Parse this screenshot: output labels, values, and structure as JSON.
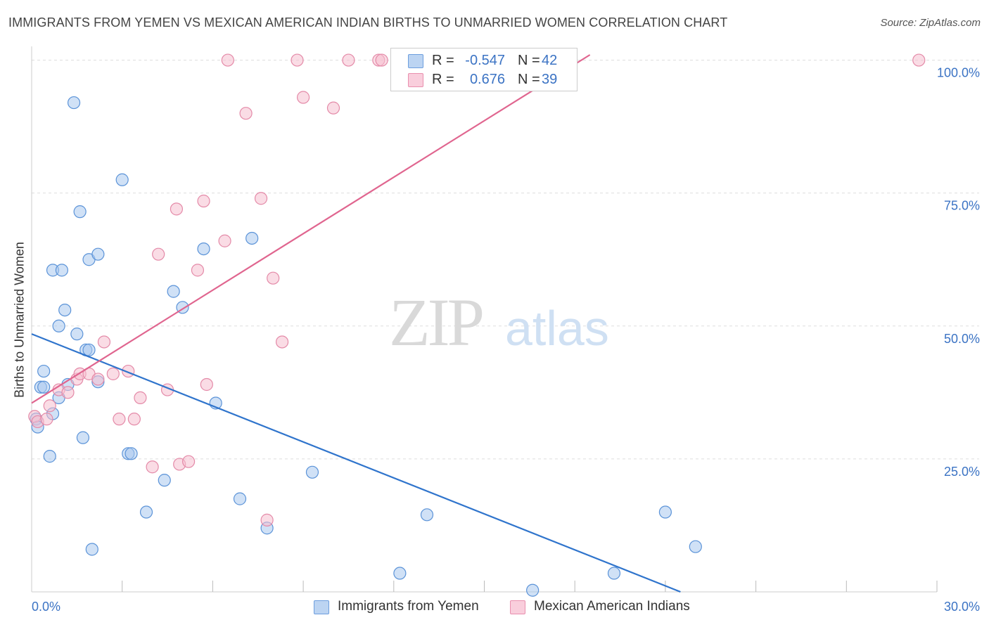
{
  "header": {
    "title": "IMMIGRANTS FROM YEMEN VS MEXICAN AMERICAN INDIAN BIRTHS TO UNMARRIED WOMEN CORRELATION CHART",
    "source": "Source: ZipAtlas.com"
  },
  "watermark": {
    "zip": "ZIP",
    "atlas": "atlas"
  },
  "legend": {
    "r_label": "R =",
    "n_label": "N =",
    "series": [
      {
        "r": "-0.547",
        "n": "42"
      },
      {
        "r": "0.676",
        "n": "39"
      }
    ]
  },
  "colors": {
    "blue_fill": "#a9c8ee",
    "blue_stroke": "#5b93d8",
    "blue_line": "#2f74cc",
    "pink_fill": "#f6bfd0",
    "pink_stroke": "#e48aa8",
    "pink_line": "#e0658f",
    "tick_text": "#3b73c4",
    "grid": "#dddddd"
  },
  "chart_data": {
    "type": "scatter",
    "title": "IMMIGRANTS FROM YEMEN VS MEXICAN AMERICAN INDIAN BIRTHS TO UNMARRIED WOMEN CORRELATION CHART",
    "xlabel": "",
    "ylabel": "Births to Unmarried Women",
    "xlim": [
      0,
      30
    ],
    "ylim": [
      0,
      101
    ],
    "x_tick_labels": [
      "0.0%",
      "30.0%"
    ],
    "y_ticks": [
      {
        "value": 25,
        "label": "25.0%"
      },
      {
        "value": 50,
        "label": "50.0%"
      },
      {
        "value": 75,
        "label": "75.0%"
      },
      {
        "value": 100,
        "label": "100.0%"
      }
    ],
    "grid": true,
    "legend_position": "bottom",
    "series": [
      {
        "name": "Immigrants from Yemen",
        "color": "#a9c8ee",
        "trend": {
          "x": [
            0,
            21.5
          ],
          "y": [
            48.5,
            0
          ]
        },
        "points": [
          [
            0.15,
            32.5
          ],
          [
            0.2,
            31
          ],
          [
            0.3,
            38.5
          ],
          [
            0.4,
            38.5
          ],
          [
            0.4,
            41.5
          ],
          [
            0.6,
            25.5
          ],
          [
            0.7,
            33.5
          ],
          [
            0.7,
            60.5
          ],
          [
            0.9,
            36.5
          ],
          [
            0.9,
            50
          ],
          [
            1.0,
            60.5
          ],
          [
            1.1,
            53
          ],
          [
            1.2,
            39
          ],
          [
            1.4,
            92
          ],
          [
            1.5,
            48.5
          ],
          [
            1.6,
            71.5
          ],
          [
            1.7,
            29
          ],
          [
            1.8,
            45.5
          ],
          [
            1.9,
            45.5
          ],
          [
            1.9,
            62.5
          ],
          [
            2.0,
            8
          ],
          [
            2.2,
            39.5
          ],
          [
            2.2,
            63.5
          ],
          [
            3.0,
            77.5
          ],
          [
            3.2,
            26
          ],
          [
            3.3,
            26
          ],
          [
            3.8,
            15
          ],
          [
            4.4,
            21
          ],
          [
            4.7,
            56.5
          ],
          [
            5.0,
            53.5
          ],
          [
            5.7,
            64.5
          ],
          [
            6.1,
            35.5
          ],
          [
            6.9,
            17.5
          ],
          [
            7.3,
            66.5
          ],
          [
            7.8,
            12
          ],
          [
            9.3,
            22.5
          ],
          [
            12.2,
            3.5
          ],
          [
            13.1,
            14.5
          ],
          [
            16.6,
            0.3
          ],
          [
            19.3,
            3.5
          ],
          [
            21.0,
            15
          ],
          [
            22.0,
            8.5
          ]
        ]
      },
      {
        "name": "Mexican American Indians",
        "color": "#f6bfd0",
        "trend": {
          "x": [
            0,
            18.5
          ],
          "y": [
            35.5,
            101
          ]
        },
        "points": [
          [
            0.1,
            33
          ],
          [
            0.2,
            32
          ],
          [
            0.5,
            32.5
          ],
          [
            0.6,
            35
          ],
          [
            0.9,
            38
          ],
          [
            1.2,
            37.5
          ],
          [
            1.5,
            40
          ],
          [
            1.6,
            41
          ],
          [
            1.9,
            41
          ],
          [
            2.2,
            40
          ],
          [
            2.4,
            47
          ],
          [
            2.7,
            41
          ],
          [
            2.9,
            32.5
          ],
          [
            3.2,
            41.5
          ],
          [
            3.4,
            32.5
          ],
          [
            3.6,
            36.5
          ],
          [
            4.0,
            23.5
          ],
          [
            4.2,
            63.5
          ],
          [
            4.5,
            38
          ],
          [
            4.8,
            72
          ],
          [
            4.9,
            24
          ],
          [
            5.2,
            24.5
          ],
          [
            5.5,
            60.5
          ],
          [
            5.7,
            73.5
          ],
          [
            5.8,
            39
          ],
          [
            6.4,
            66
          ],
          [
            6.5,
            100
          ],
          [
            7.1,
            90
          ],
          [
            7.6,
            74
          ],
          [
            7.8,
            13.5
          ],
          [
            8.0,
            59
          ],
          [
            8.3,
            47
          ],
          [
            8.8,
            100
          ],
          [
            9.0,
            93
          ],
          [
            10.0,
            91
          ],
          [
            10.5,
            100
          ],
          [
            11.5,
            100
          ],
          [
            11.6,
            100
          ],
          [
            29.4,
            100
          ]
        ]
      }
    ]
  }
}
